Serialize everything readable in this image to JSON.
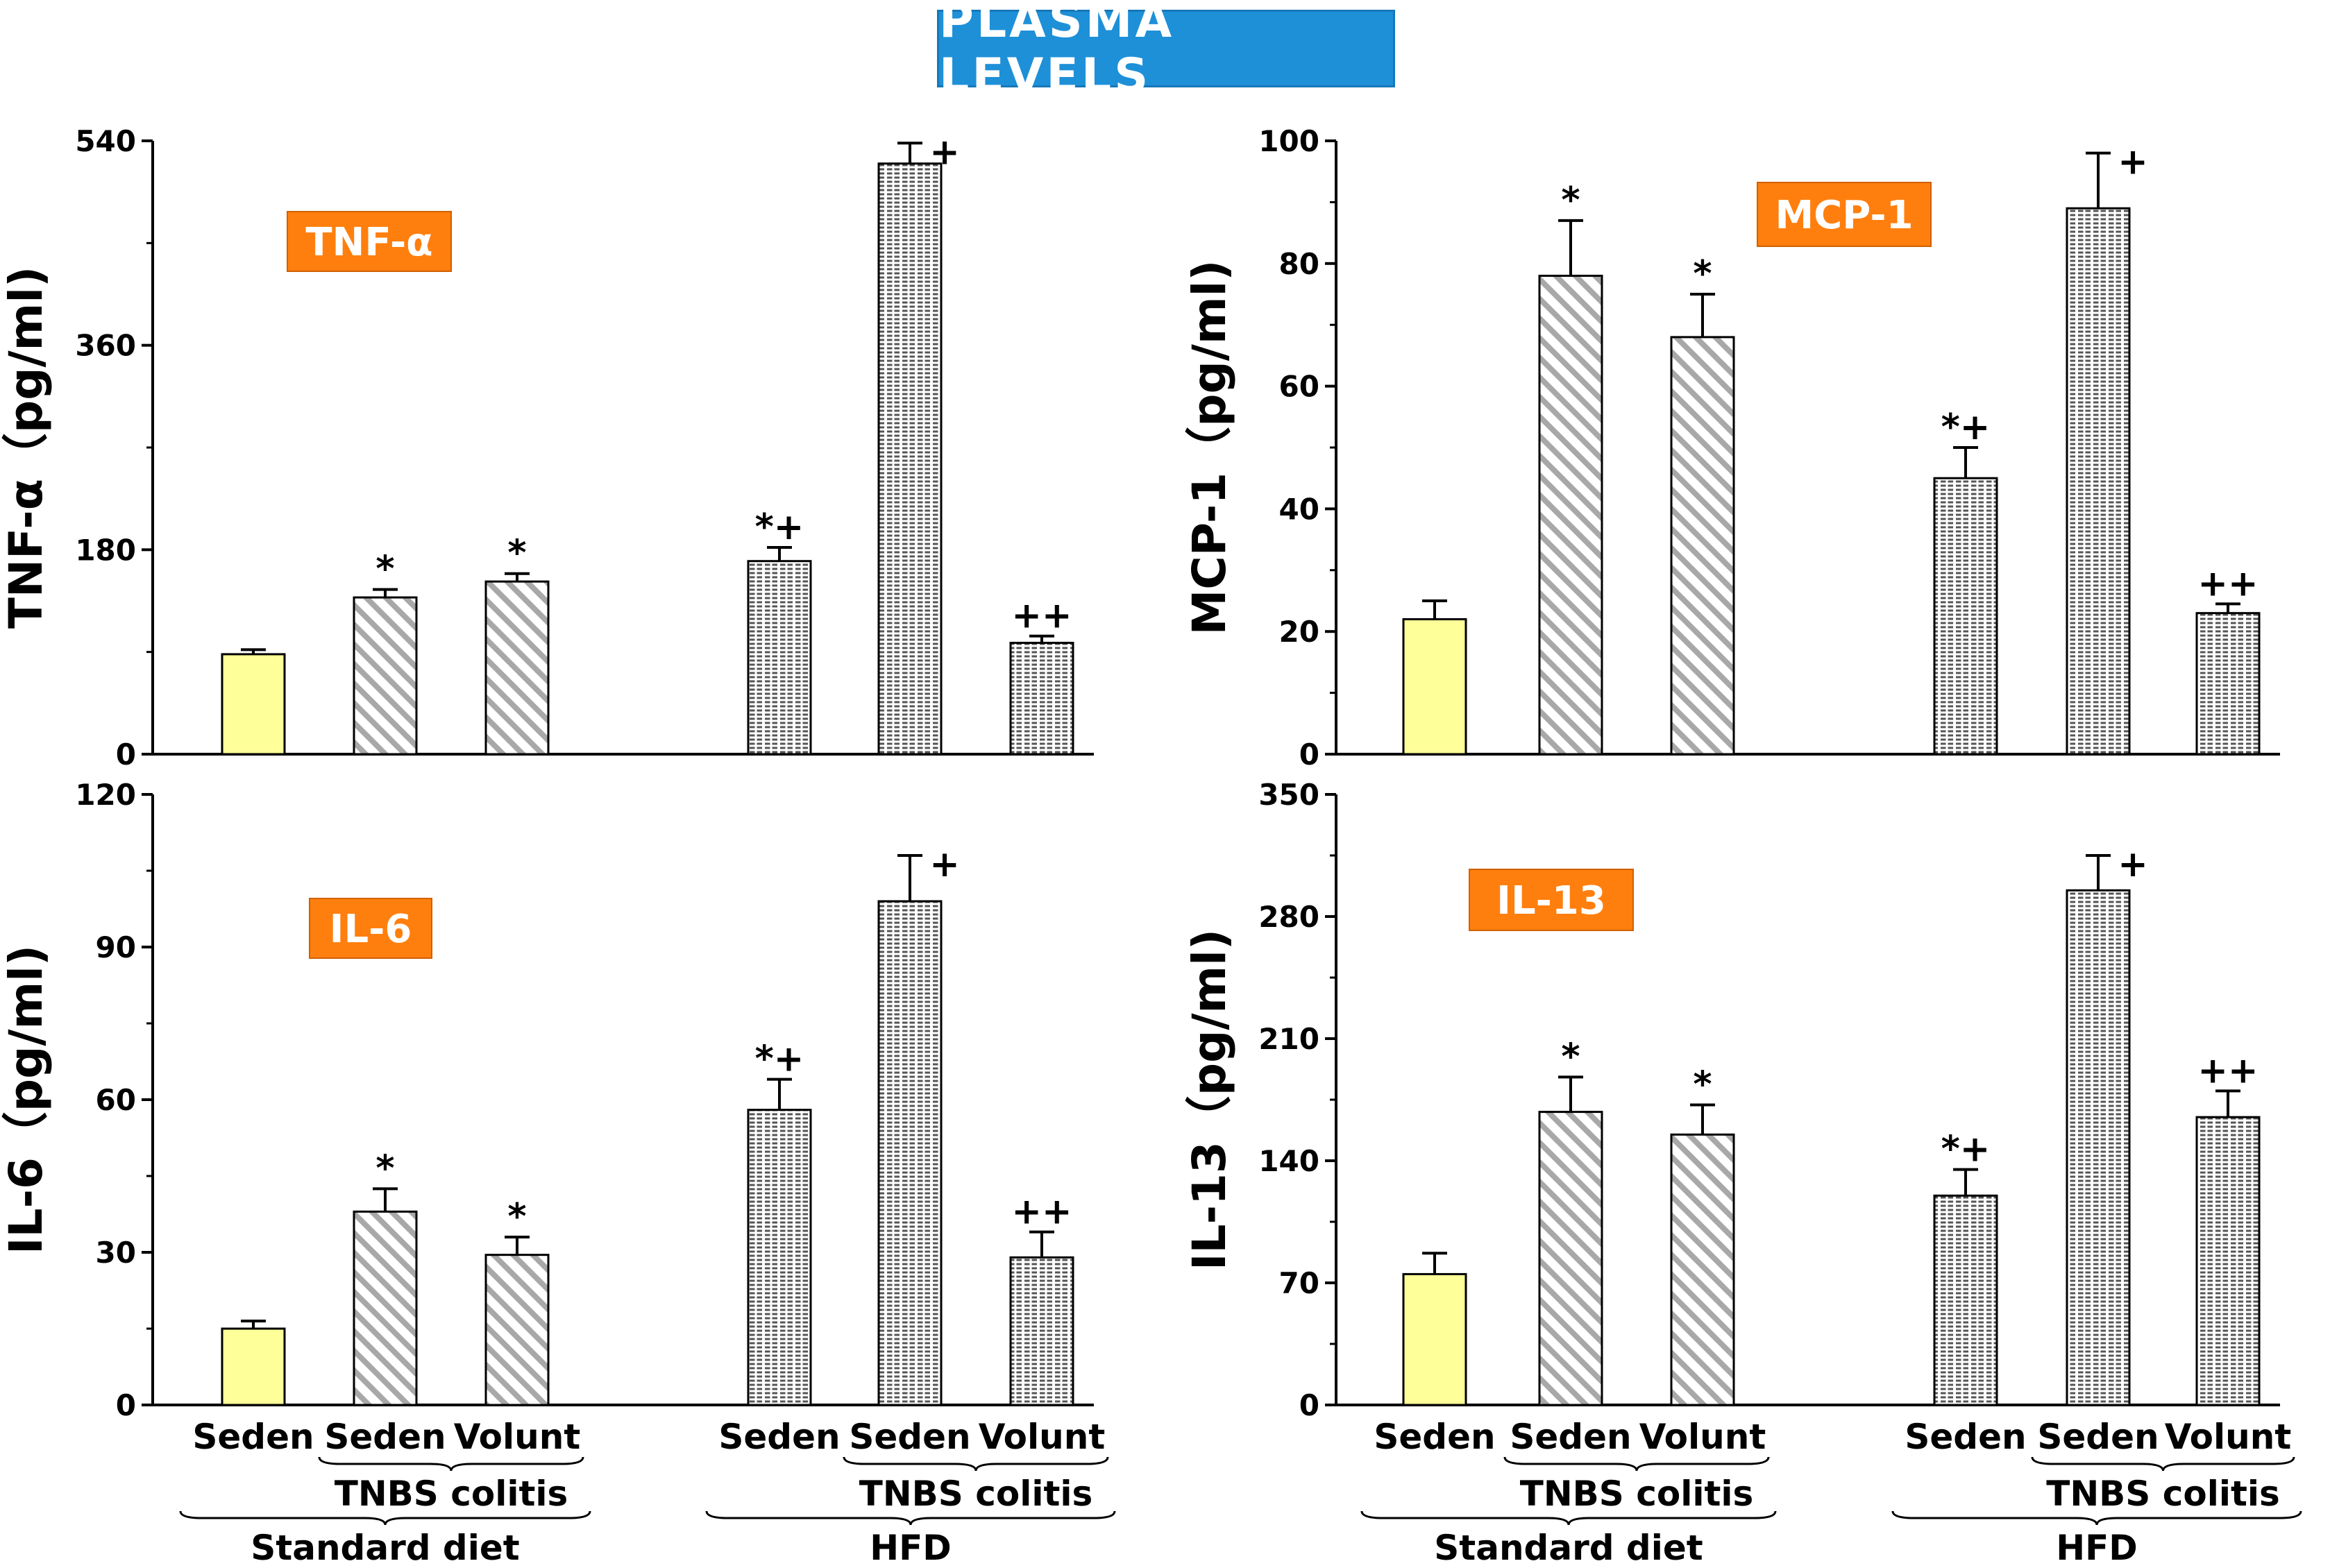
{
  "title": "PLASMA LEVELS",
  "colors": {
    "title_bg": "#1e90d8",
    "label_box": "#ff7f0e",
    "seden_standard_bar": "#ffff99"
  },
  "chart_data": [
    {
      "type": "bar",
      "panel": "top-left",
      "label": "TNF-α",
      "ylabel": "TNF-α（pg/ml)",
      "ylim": [
        0,
        540
      ],
      "yticks": [
        "0",
        "180",
        "360",
        "540"
      ],
      "categories": [
        "Standard diet Seden",
        "Standard diet TNBS colitis Seden",
        "Standard diet TNBS colitis Volunt",
        "HFD Seden",
        "HFD TNBS colitis Seden",
        "HFD TNBS colitis Volunt"
      ],
      "values": [
        88,
        138,
        152,
        170,
        520,
        98
      ],
      "errors": [
        4,
        7,
        7,
        12,
        18,
        6
      ],
      "significance": [
        "",
        "*",
        "*",
        "*+",
        "+",
        "++"
      ]
    },
    {
      "type": "bar",
      "panel": "top-right",
      "label": "MCP-1",
      "ylabel": "MCP-1（pg/ml)",
      "ylim": [
        0,
        100
      ],
      "yticks": [
        "0",
        "20",
        "40",
        "60",
        "80",
        "100"
      ],
      "categories": [
        "Standard diet Seden",
        "Standard diet TNBS colitis Seden",
        "Standard diet TNBS colitis Volunt",
        "HFD Seden",
        "HFD TNBS colitis Seden",
        "HFD TNBS colitis Volunt"
      ],
      "values": [
        22,
        78,
        68,
        45,
        89,
        23
      ],
      "errors": [
        3,
        9,
        7,
        5,
        9,
        1.5
      ],
      "significance": [
        "",
        "*",
        "*",
        "*+",
        "+",
        "++"
      ]
    },
    {
      "type": "bar",
      "panel": "bottom-left",
      "label": "IL-6",
      "ylabel": "IL-6（pg/ml)",
      "ylim": [
        0,
        120
      ],
      "yticks": [
        "0",
        "30",
        "60",
        "90",
        "120"
      ],
      "categories": [
        "Standard diet Seden",
        "Standard diet TNBS colitis Seden",
        "Standard diet TNBS colitis Volunt",
        "HFD Seden",
        "HFD TNBS colitis Seden",
        "HFD TNBS colitis Volunt"
      ],
      "values": [
        15,
        38,
        29.5,
        58,
        99,
        29
      ],
      "errors": [
        1.5,
        4.5,
        3.5,
        6,
        9,
        5
      ],
      "significance": [
        "",
        "*",
        "*",
        "*+",
        "+",
        "++"
      ]
    },
    {
      "type": "bar",
      "panel": "bottom-right",
      "label": "IL-13",
      "ylabel": "IL-13（pg/ml)",
      "ylim": [
        0,
        350
      ],
      "yticks": [
        "0",
        "70",
        "140",
        "210",
        "280",
        "350"
      ],
      "categories": [
        "Standard diet Seden",
        "Standard diet TNBS colitis Seden",
        "Standard diet TNBS colitis Volunt",
        "HFD Seden",
        "HFD TNBS colitis Seden",
        "HFD TNBS colitis Volunt"
      ],
      "values": [
        75,
        168,
        155,
        120,
        295,
        165
      ],
      "errors": [
        12,
        20,
        17,
        15,
        20,
        15
      ],
      "significance": [
        "",
        "*",
        "*",
        "*+",
        "+",
        "++"
      ]
    }
  ],
  "xaxis": {
    "bar_labels": [
      "Seden",
      "Seden",
      "Volunt",
      "Seden",
      "Seden",
      "Volunt"
    ],
    "sub_group": "TNBS colitis",
    "groups": [
      "Standard diet",
      "HFD"
    ]
  }
}
